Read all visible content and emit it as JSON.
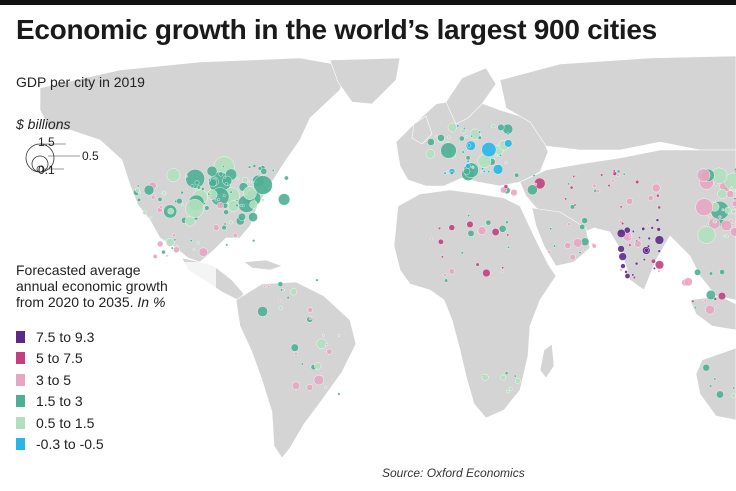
{
  "title": "Economic growth in the world’s largest 900 cities",
  "subtitle": "GDP per city in 2019",
  "size_legend": {
    "title": "$ billions",
    "items": [
      {
        "label": "1.5",
        "value": 1.5
      },
      {
        "label": "0.5",
        "value": 0.5
      },
      {
        "label": "0.1",
        "value": 0.1
      }
    ]
  },
  "color_legend": {
    "title_line1": "Forecasted average",
    "title_line2": "annual economic growth",
    "title_line3": "from 2020 to 2035.",
    "title_unit": "In %",
    "items": [
      {
        "label": "7.5 to 9.3",
        "color": "#5b2a86"
      },
      {
        "label": "5 to 7.5",
        "color": "#c2407f"
      },
      {
        "label": "3 to 5",
        "color": "#e8a6c2"
      },
      {
        "label": "1.5 to 3",
        "color": "#4daf94"
      },
      {
        "label": "0.5 to 1.5",
        "color": "#b3dfbe"
      },
      {
        "label": "-0.3 to -0.5",
        "color": "#29b6e6"
      }
    ]
  },
  "source": "Source: Oxford Economics",
  "colors": {
    "land": "#d4d4d4",
    "ocean": "#ffffff",
    "topbar": "#111111"
  }
}
